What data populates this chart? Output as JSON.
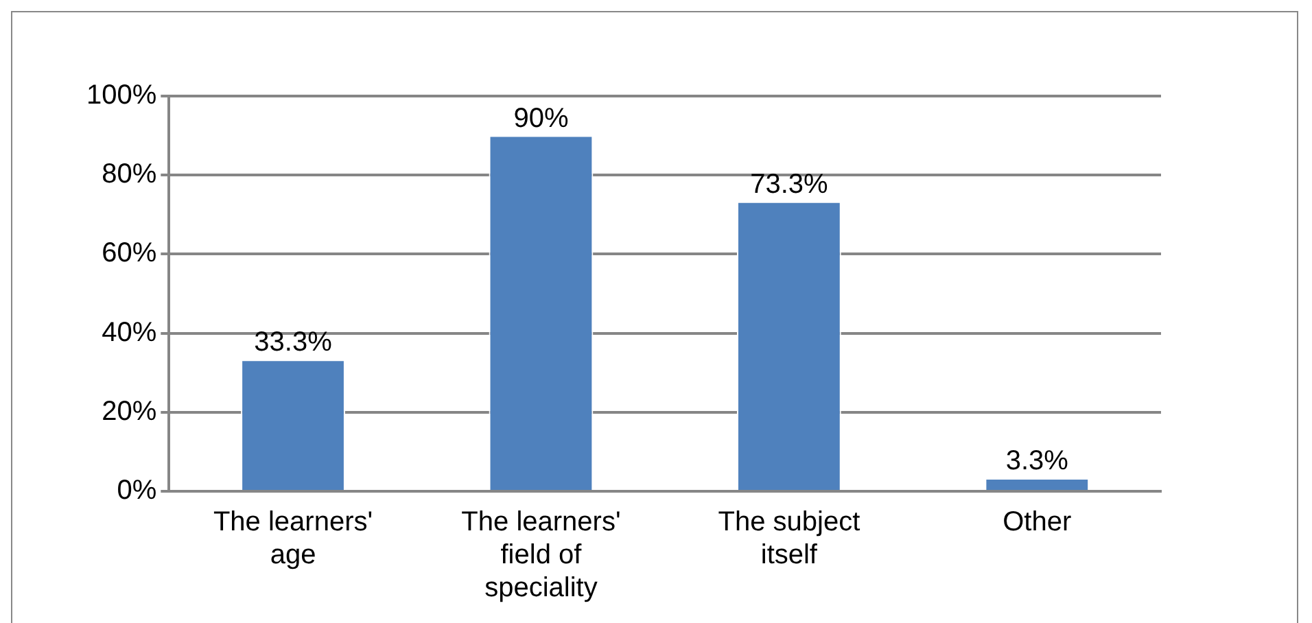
{
  "chart_data": {
    "type": "bar",
    "categories": [
      "The learners' age",
      "The learners' field of speciality",
      "The subject itself",
      "Other"
    ],
    "values": [
      33.3,
      90,
      73.3,
      3.3
    ],
    "color": "#4f81bd",
    "value_labels": [
      "33.3%",
      "90%",
      "73.3%",
      "3.3%"
    ],
    "ylim": [
      0,
      100
    ],
    "yticks": [
      {
        "value": 0,
        "label": "0%"
      },
      {
        "value": 20,
        "label": "20%"
      },
      {
        "value": 40,
        "label": "40%"
      },
      {
        "value": 60,
        "label": "60%"
      },
      {
        "value": 80,
        "label": "80%"
      },
      {
        "value": 100,
        "label": "100%"
      }
    ],
    "grid": "y",
    "legend": false
  }
}
